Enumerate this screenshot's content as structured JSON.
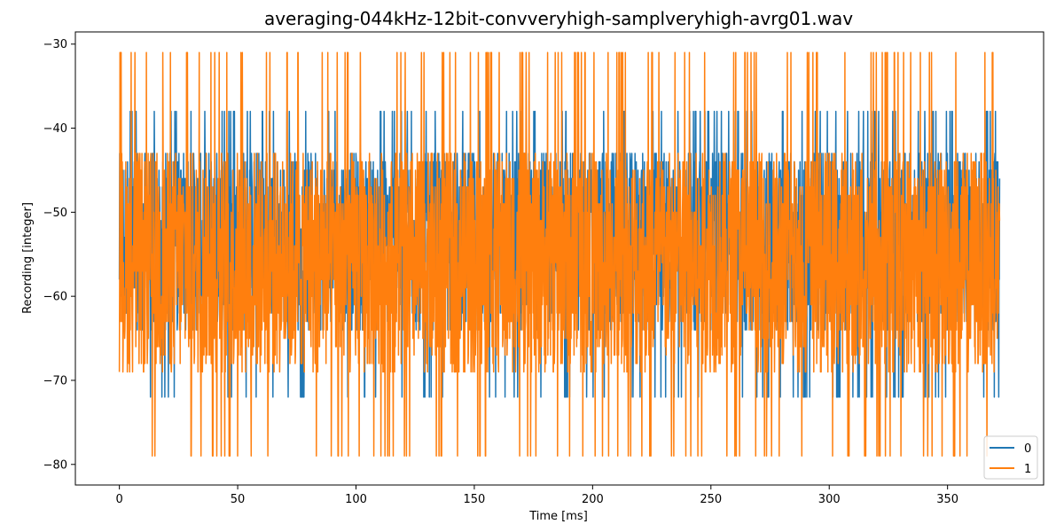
{
  "chart_data": {
    "type": "line",
    "title": "averaging-044kHz-12bit-convveryhigh-samplveryhigh-avrg01.wav",
    "xlabel": "Time [ms]",
    "ylabel": "Recording [integer]",
    "xlim": [
      -18.6,
      390.6
    ],
    "ylim": [
      -82.45,
      -28.55
    ],
    "xticks": [
      0,
      50,
      100,
      150,
      200,
      250,
      300,
      350
    ],
    "yticks": [
      -80,
      -70,
      -60,
      -50,
      -40,
      -30
    ],
    "xtick_labels": [
      "0",
      "50",
      "100",
      "150",
      "200",
      "250",
      "300",
      "350"
    ],
    "ytick_labels": [
      "−80",
      "−70",
      "−60",
      "−50",
      "−40",
      "−30"
    ],
    "grid": false,
    "legend_position": "lower-right",
    "duration_ms": 372,
    "series": [
      {
        "name": "0",
        "color": "#1f77b4",
        "band_min": -64,
        "band_max": -43,
        "peak_max": -38,
        "peak_min": -72
      },
      {
        "name": "1",
        "color": "#ff7f0e",
        "band_min": -69,
        "band_max": -43,
        "peak_max": -31,
        "peak_min": -79
      }
    ]
  }
}
